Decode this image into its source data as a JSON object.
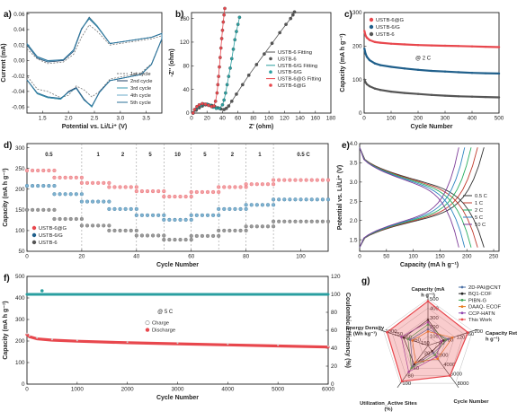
{
  "panels": [
    "a)",
    "b)",
    "c)",
    "d)",
    "e)",
    "f)",
    "g)"
  ],
  "colors": {
    "red": "#e8474d",
    "blue": "#1f5f8b",
    "teal": "#2a9fa0",
    "gray": "#555555",
    "pink": "#f2a0a4",
    "lightblue": "#7fb3d1",
    "lightgray": "#9a9a9a"
  },
  "chart_data": [
    {
      "id": "a",
      "type": "line",
      "xlabel": "Potential vs. Li/Li⁺ (V)",
      "ylabel": "Current (mA)",
      "xlim": [
        1.2,
        3.8
      ],
      "ylim": [
        -0.068,
        0.062
      ],
      "xticks": [
        "1.5",
        "2.0",
        "2.5",
        "3.0",
        "3.5"
      ],
      "yticks": [
        "-0.06",
        "-0.04",
        "-0.02",
        "0.00",
        "0.02",
        "0.04",
        "0.06"
      ],
      "legend": [
        "1st cycle",
        "2nd cycle",
        "3rd cycle",
        "4th cycle",
        "5th cycle"
      ],
      "legend_position": "bottom-right",
      "series": [
        {
          "name": "1st cycle",
          "x": [
            1.2,
            1.4,
            1.6,
            1.9,
            2.1,
            2.25,
            2.4,
            2.55,
            2.8,
            3.1,
            3.4,
            3.6,
            3.8,
            3.8,
            3.6,
            3.4,
            3.1,
            2.8,
            2.6,
            2.45,
            2.3,
            2.15,
            2.0,
            1.85,
            1.6,
            1.4,
            1.2
          ],
          "y": [
            0.015,
            0.002,
            -0.004,
            -0.002,
            0.008,
            0.03,
            0.046,
            0.038,
            0.02,
            0.023,
            0.026,
            0.028,
            0.032,
            0.028,
            -0.004,
            -0.016,
            -0.02,
            -0.024,
            -0.04,
            -0.047,
            -0.038,
            -0.033,
            -0.045,
            -0.048,
            -0.04,
            -0.037,
            -0.02
          ]
        },
        {
          "name": "2nd cycle",
          "x": [
            1.2,
            1.4,
            1.6,
            1.9,
            2.1,
            2.25,
            2.4,
            2.55,
            2.8,
            3.1,
            3.4,
            3.6,
            3.8,
            3.8,
            3.6,
            3.4,
            3.1,
            2.8,
            2.6,
            2.45,
            2.3,
            2.15,
            2.0,
            1.85,
            1.6,
            1.4,
            1.2
          ],
          "y": [
            0.02,
            0.003,
            -0.002,
            0.0,
            0.012,
            0.04,
            0.056,
            0.045,
            0.022,
            0.025,
            0.028,
            0.03,
            0.035,
            0.028,
            -0.005,
            -0.018,
            -0.022,
            -0.026,
            -0.04,
            -0.06,
            -0.05,
            -0.035,
            -0.04,
            -0.05,
            -0.048,
            -0.043,
            -0.025
          ]
        },
        {
          "name": "3rd cycle",
          "x": [
            1.2,
            1.4,
            1.6,
            1.9,
            2.1,
            2.25,
            2.4,
            2.55,
            2.8,
            3.1,
            3.4,
            3.6,
            3.8,
            3.8,
            3.6,
            3.4,
            3.1,
            2.8,
            2.6,
            2.45,
            2.3,
            2.15,
            2.0,
            1.85,
            1.6,
            1.4,
            1.2
          ],
          "y": [
            0.021,
            0.004,
            -0.001,
            0.001,
            0.013,
            0.041,
            0.055,
            0.045,
            0.022,
            0.025,
            0.028,
            0.03,
            0.035,
            0.028,
            -0.005,
            -0.018,
            -0.022,
            -0.026,
            -0.041,
            -0.06,
            -0.051,
            -0.036,
            -0.041,
            -0.05,
            -0.048,
            -0.043,
            -0.025
          ]
        },
        {
          "name": "4th cycle",
          "x": [
            1.2,
            1.4,
            1.6,
            1.9,
            2.1,
            2.25,
            2.4,
            2.55,
            2.8,
            3.1,
            3.4,
            3.6,
            3.8,
            3.8,
            3.6,
            3.4,
            3.1,
            2.8,
            2.6,
            2.45,
            2.3,
            2.15,
            2.0,
            1.85,
            1.6,
            1.4,
            1.2
          ],
          "y": [
            0.022,
            0.004,
            -0.001,
            0.001,
            0.013,
            0.041,
            0.054,
            0.044,
            0.022,
            0.025,
            0.028,
            0.03,
            0.035,
            0.028,
            -0.005,
            -0.018,
            -0.022,
            -0.026,
            -0.041,
            -0.059,
            -0.051,
            -0.036,
            -0.041,
            -0.049,
            -0.047,
            -0.042,
            -0.025
          ]
        },
        {
          "name": "5th cycle",
          "x": [
            1.2,
            1.4,
            1.6,
            1.9,
            2.1,
            2.25,
            2.4,
            2.55,
            2.8,
            3.1,
            3.4,
            3.6,
            3.8,
            3.8,
            3.6,
            3.4,
            3.1,
            2.8,
            2.6,
            2.45,
            2.3,
            2.15,
            2.0,
            1.85,
            1.6,
            1.4,
            1.2
          ],
          "y": [
            0.022,
            0.005,
            0.0,
            0.001,
            0.014,
            0.041,
            0.054,
            0.044,
            0.022,
            0.025,
            0.028,
            0.03,
            0.035,
            0.028,
            -0.005,
            -0.018,
            -0.022,
            -0.026,
            -0.041,
            -0.059,
            -0.051,
            -0.036,
            -0.041,
            -0.049,
            -0.047,
            -0.042,
            -0.025
          ]
        }
      ]
    },
    {
      "id": "b",
      "type": "scatter",
      "xlabel": "Z' (ohm)",
      "ylabel": "-Z'' (ohm)",
      "xlim": [
        0,
        180
      ],
      "ylim": [
        0,
        170
      ],
      "xticks": [
        "0",
        "20",
        "40",
        "60",
        "80",
        "100",
        "120",
        "140",
        "160",
        "180"
      ],
      "yticks": [
        "0",
        "40",
        "80",
        "120",
        "160"
      ],
      "legend": [
        "USTB-6 Fitting",
        "USTB-6",
        "USTB-6/G Fitting",
        "USTB-6/G",
        "USTB-6@G Fitting",
        "USTB-6@G"
      ],
      "legend_position": "center-right",
      "series": [
        {
          "name": "USTB-6",
          "x": [
            2,
            6,
            10,
            14,
            18,
            22,
            26,
            30,
            34,
            38,
            42,
            45,
            48,
            52,
            58,
            66,
            74,
            84,
            94,
            104,
            114,
            122,
            128,
            131,
            133
          ],
          "y": [
            0,
            5,
            9,
            12,
            14,
            14,
            13,
            11,
            9,
            7,
            6,
            8,
            12,
            20,
            32,
            48,
            64,
            82,
            100,
            118,
            136,
            150,
            160,
            166,
            171
          ]
        },
        {
          "name": "USTB-6/G",
          "x": [
            2,
            5,
            8,
            12,
            16,
            20,
            24,
            28,
            32,
            36,
            40,
            42,
            44,
            46,
            48,
            50,
            52,
            54,
            56,
            58,
            60,
            62
          ],
          "y": [
            0,
            6,
            10,
            13,
            15,
            15,
            13,
            10,
            8,
            8,
            14,
            22,
            34,
            48,
            62,
            76,
            92,
            108,
            124,
            138,
            150,
            162
          ]
        },
        {
          "name": "USTB-6@G",
          "x": [
            2,
            4,
            7,
            10,
            14,
            18,
            22,
            26,
            29,
            31,
            33,
            34,
            35,
            36,
            37,
            38,
            39,
            40,
            41,
            42,
            43
          ],
          "y": [
            0,
            6,
            11,
            14,
            16,
            15,
            13,
            11,
            12,
            20,
            34,
            48,
            62,
            78,
            94,
            110,
            126,
            140,
            154,
            166,
            177
          ]
        }
      ]
    },
    {
      "id": "c",
      "type": "scatter",
      "xlabel": "Cycle Number",
      "ylabel": "Capacity (mA h g⁻¹)",
      "xlim": [
        0,
        500
      ],
      "ylim": [
        0,
        300
      ],
      "xticks": [
        "0",
        "100",
        "200",
        "300",
        "400",
        "500"
      ],
      "yticks": [
        "0",
        "100",
        "200",
        "300"
      ],
      "annotation": "@ 2 C",
      "legend": [
        "USTB-6@G",
        "USTB-6/G",
        "USTB-6"
      ],
      "legend_position": "top-left",
      "series": [
        {
          "name": "USTB-6@G",
          "x": [
            1,
            5,
            10,
            20,
            40,
            60,
            100,
            150,
            200,
            250,
            300,
            350,
            400,
            450,
            500
          ],
          "y": [
            245,
            232,
            225,
            218,
            212,
            210,
            207,
            205,
            203,
            202,
            201,
            200,
            199,
            198,
            197
          ]
        },
        {
          "name": "USTB-6/G",
          "x": [
            1,
            5,
            10,
            20,
            40,
            60,
            100,
            150,
            200,
            250,
            300,
            350,
            400,
            450,
            500
          ],
          "y": [
            192,
            178,
            168,
            158,
            148,
            143,
            138,
            133,
            129,
            126,
            124,
            122,
            120,
            119,
            118
          ]
        },
        {
          "name": "USTB-6",
          "x": [
            1,
            5,
            10,
            20,
            40,
            60,
            100,
            150,
            200,
            250,
            300,
            350,
            400,
            450,
            500
          ],
          "y": [
            100,
            92,
            86,
            80,
            73,
            69,
            64,
            60,
            57,
            54,
            52,
            50,
            49,
            48,
            47
          ]
        }
      ]
    },
    {
      "id": "d",
      "type": "scatter",
      "xlabel": "Cycle Number",
      "ylabel": "Capacity (mA h g⁻¹)",
      "xlim": [
        0,
        110
      ],
      "ylim": [
        50,
        310
      ],
      "xticks": [
        "0",
        "20",
        "40",
        "60",
        "80",
        "100"
      ],
      "yticks": [
        "50",
        "100",
        "150",
        "200",
        "250",
        "300"
      ],
      "rate_labels": [
        "0.5",
        "1",
        "2",
        "5",
        "10",
        "5",
        "2",
        "1",
        "0.5 C"
      ],
      "legend": [
        "USTB-6@G",
        "USTB-6/G",
        "USTB-6"
      ],
      "legend_position": "bottom-left",
      "series": [
        {
          "name": "USTB-6@G",
          "x": [
            5,
            15,
            25,
            35,
            45,
            55,
            65,
            75,
            85,
            100
          ],
          "y": [
            245,
            228,
            215,
            205,
            195,
            182,
            193,
            205,
            212,
            222
          ]
        },
        {
          "name": "USTB-6/G",
          "x": [
            5,
            15,
            25,
            35,
            45,
            55,
            65,
            75,
            85,
            100
          ],
          "y": [
            208,
            188,
            170,
            152,
            137,
            126,
            137,
            152,
            162,
            175
          ]
        },
        {
          "name": "USTB-6",
          "x": [
            5,
            15,
            25,
            35,
            45,
            55,
            65,
            75,
            85,
            100
          ],
          "y": [
            150,
            128,
            112,
            100,
            88,
            78,
            87,
            100,
            110,
            122
          ]
        }
      ]
    },
    {
      "id": "e",
      "type": "line",
      "xlabel": "Capacity (mA h g⁻¹)",
      "ylabel": "Potential vs. Li/Li⁺ (V)",
      "xlim": [
        0,
        260
      ],
      "ylim": [
        1.2,
        4.0
      ],
      "xticks": [
        "0",
        "50",
        "100",
        "150",
        "200",
        "250"
      ],
      "yticks": [
        "1.5",
        "2.0",
        "2.5",
        "3.0",
        "3.5",
        "4.0"
      ],
      "legend": [
        "0.5 C",
        "1 C",
        "2 C",
        "5 C",
        "10 C"
      ],
      "legend_position": "bottom-right",
      "series": [
        {
          "name": "0.5 C",
          "capacity": 232
        },
        {
          "name": "1 C",
          "capacity": 220
        },
        {
          "name": "2 C",
          "capacity": 208
        },
        {
          "name": "5 C",
          "capacity": 196
        },
        {
          "name": "10 C",
          "capacity": 185
        }
      ]
    },
    {
      "id": "f",
      "type": "scatter",
      "xlabel": "Cycle Number",
      "ylabel": "Capacity (mA h g⁻¹)",
      "y2label": "Coulombic Efficiency (%)",
      "xlim": [
        0,
        6000
      ],
      "ylim": [
        0,
        500
      ],
      "y2lim": [
        0,
        120
      ],
      "xticks": [
        "0",
        "1000",
        "2000",
        "3000",
        "4000",
        "5000",
        "6000"
      ],
      "yticks": [
        "0",
        "100",
        "200",
        "300",
        "400",
        "500"
      ],
      "y2ticks": [
        "0",
        "20",
        "40",
        "60",
        "80",
        "100",
        "120"
      ],
      "annotation": "@ 5 C",
      "legend": [
        "Charge",
        "Discharge"
      ],
      "legend_position": "center",
      "series": [
        {
          "name": "Charge",
          "x": [
            0,
            50,
            200,
            500,
            1000,
            2000,
            3000,
            4000,
            5000,
            6000
          ],
          "y": [
            232,
            222,
            212,
            205,
            200,
            193,
            188,
            183,
            178,
            173
          ]
        },
        {
          "name": "Discharge",
          "x": [
            0,
            50,
            200,
            500,
            1000,
            2000,
            3000,
            4000,
            5000,
            6000
          ],
          "y": [
            230,
            220,
            210,
            204,
            199,
            192,
            187,
            182,
            177,
            172
          ]
        },
        {
          "name": "Coulombic Efficiency",
          "x": [
            0,
            1000,
            2000,
            3000,
            4000,
            5000,
            6000
          ],
          "y": [
            100,
            100,
            100,
            100,
            100,
            100,
            100
          ],
          "outlier_x": 300,
          "outlier_y": 104
        }
      ]
    },
    {
      "id": "g",
      "type": "radar",
      "axes": [
        {
          "label": "Capacity (mA h g⁻¹)",
          "ticks": [
            "100",
            "200",
            "300",
            "400",
            "500"
          ]
        },
        {
          "label": "Capacity Retention (mA h g⁻¹)",
          "ticks": [
            "40",
            "80",
            "120",
            "160",
            "200"
          ]
        },
        {
          "label": "Cycle Number",
          "ticks": [
            "2000",
            "4000",
            "6000",
            "8000"
          ]
        },
        {
          "label": "Utilization_Active Sites (%)",
          "ticks": [
            "20",
            "40",
            "60",
            "80",
            "100"
          ]
        },
        {
          "label": "Energy Density (Wh kg⁻¹)",
          "ticks": [
            "150",
            "350",
            "550",
            "750",
            "1000"
          ]
        }
      ],
      "legend": [
        "2D-PAI@CNT",
        "BQ1-COF",
        "PIBN-G",
        "DAAQ- ECOF",
        "CCP-HATN",
        "This Work"
      ],
      "legend_position": "top-right",
      "series": [
        {
          "name": "2D-PAI@CNT",
          "values": [
            0.35,
            0.45,
            0.2,
            0.55,
            0.4
          ]
        },
        {
          "name": "BQ1-COF",
          "values": [
            0.55,
            0.35,
            0.15,
            0.5,
            0.55
          ]
        },
        {
          "name": "PIBN-G",
          "values": [
            0.45,
            0.4,
            0.25,
            0.6,
            0.45
          ]
        },
        {
          "name": "DAAQ- ECOF",
          "values": [
            0.3,
            0.55,
            0.35,
            0.45,
            0.35
          ]
        },
        {
          "name": "CCP-HATN",
          "values": [
            0.5,
            0.3,
            0.3,
            0.7,
            0.6
          ]
        },
        {
          "name": "This Work",
          "values": [
            0.95,
            0.9,
            0.8,
            0.95,
            0.92
          ]
        }
      ]
    }
  ]
}
